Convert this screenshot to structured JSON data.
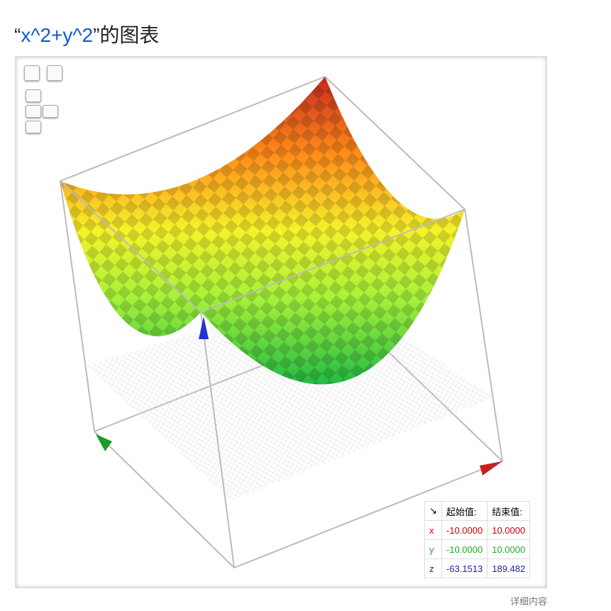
{
  "title": {
    "open_quote": "“",
    "query": "x^2+y^2",
    "suffix": "”的图表"
  },
  "range_table": {
    "header": [
      "↘",
      "起始值:",
      "结束值:"
    ],
    "rows": [
      [
        "x",
        "-10.0000",
        "10.0000"
      ],
      [
        "y",
        "-10.0000",
        "10.0000"
      ],
      [
        "z",
        "-63.1513",
        "189.482"
      ]
    ]
  },
  "footer": {
    "link": "详细内容"
  }
}
